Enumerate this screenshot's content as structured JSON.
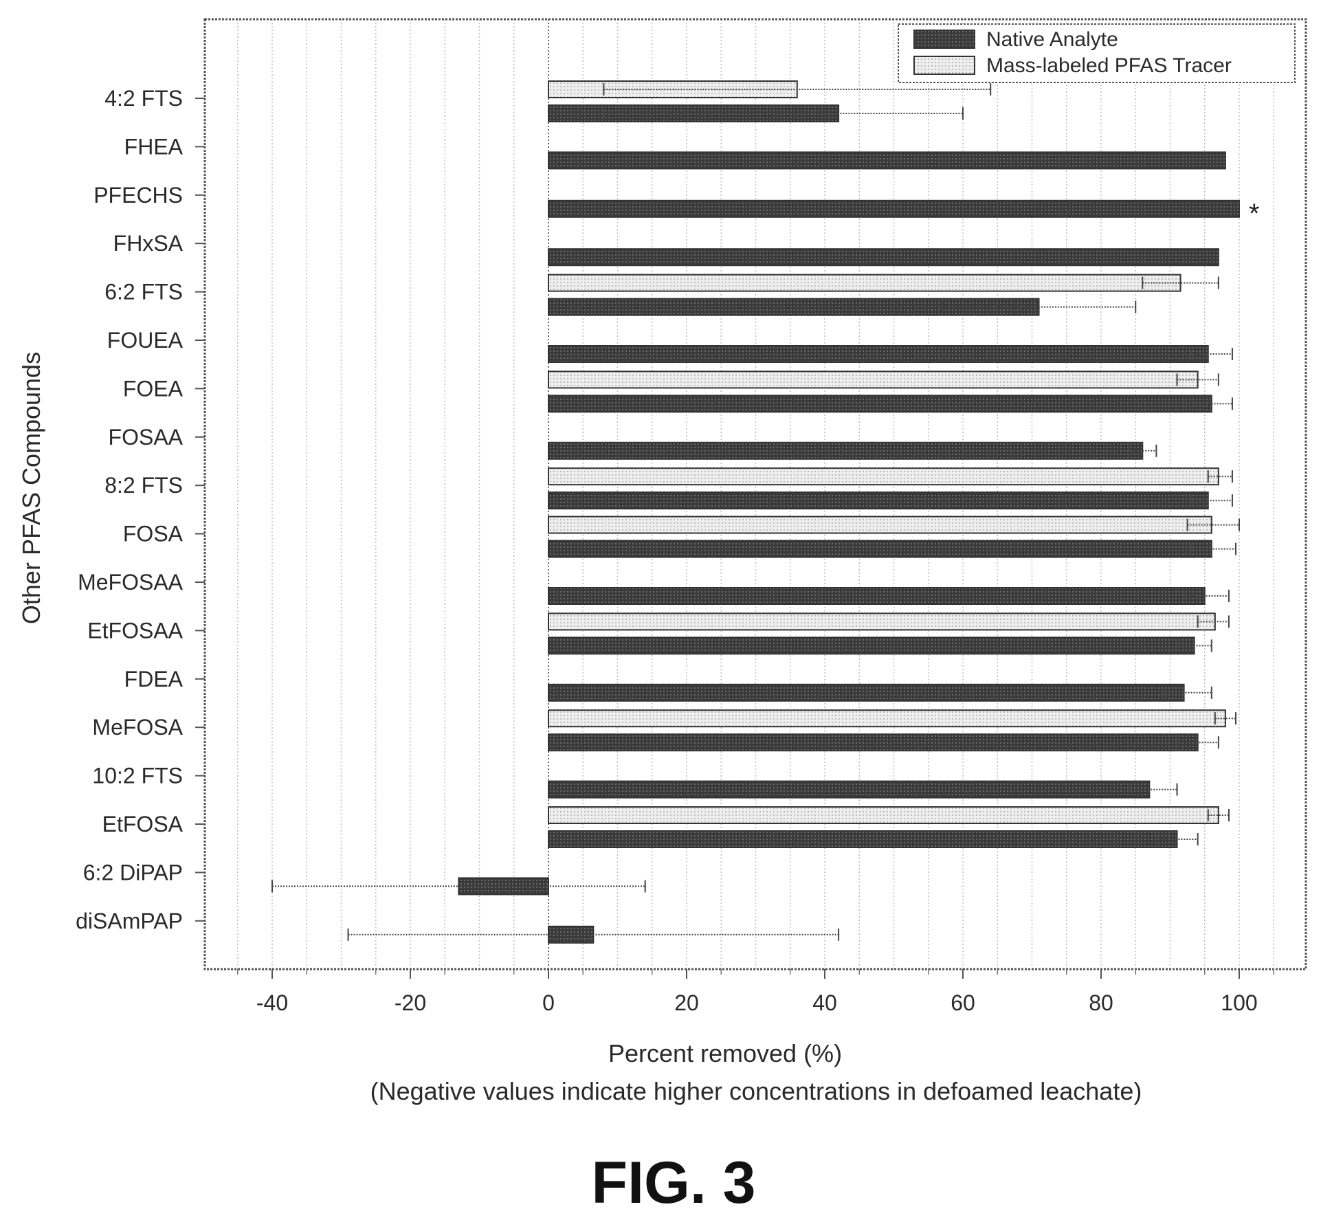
{
  "figure_caption": "FIG. 3",
  "chart_data": {
    "type": "bar",
    "orientation": "horizontal",
    "title": "",
    "xlabel": "Percent removed (%)",
    "xlabel_sub": "(Negative values indicate higher concentrations in defoamed leachate)",
    "ylabel": "Other PFAS Compounds",
    "xlim": [
      -50,
      108
    ],
    "xticks": [
      -40,
      -20,
      0,
      20,
      40,
      60,
      80,
      100
    ],
    "grid": "vertical dotted",
    "legend_position": "top-right",
    "categories": [
      "4:2 FTS",
      "FHEA",
      "PFECHS",
      "FHxSA",
      "6:2 FTS",
      "FOUEA",
      "FOEA",
      "FOSAA",
      "8:2 FTS",
      "FOSA",
      "MeFOSAA",
      "EtFOSAA",
      "FDEA",
      "MeFOSA",
      "10:2 FTS",
      "EtFOSA",
      "6:2 DiPAP",
      "diSAmPAP"
    ],
    "series": [
      {
        "name": "Native Analyte",
        "color": "#3a3a3a",
        "values": [
          42,
          98,
          100,
          97,
          71,
          95.5,
          96,
          86,
          95.5,
          96,
          95,
          93.5,
          92,
          94,
          87,
          91,
          -13,
          6.5
        ],
        "error_low": [
          8,
          null,
          null,
          null,
          57,
          93,
          92,
          84,
          93,
          93,
          92,
          91,
          89,
          91,
          84,
          88,
          -40,
          -29
        ],
        "error_high": [
          60,
          null,
          null,
          null,
          85,
          99,
          99,
          88,
          99,
          99.5,
          98.5,
          96,
          96,
          97,
          91,
          94,
          14,
          42
        ]
      },
      {
        "name": "Mass-labeled PFAS Tracer",
        "color": "#e4e4e4",
        "values": [
          36,
          null,
          null,
          null,
          91.5,
          null,
          94,
          null,
          97,
          96,
          null,
          96.5,
          null,
          98,
          null,
          97,
          null,
          null
        ],
        "error_low": [
          8,
          null,
          null,
          null,
          86,
          null,
          91,
          null,
          95.5,
          92.5,
          null,
          94,
          null,
          96.5,
          null,
          95.5,
          null,
          null
        ],
        "error_high": [
          64,
          null,
          null,
          null,
          97,
          null,
          97,
          null,
          99,
          100,
          null,
          98.5,
          null,
          99.5,
          null,
          98.5,
          null,
          null
        ]
      }
    ],
    "annotations": [
      {
        "category": "PFECHS",
        "text": "*"
      }
    ]
  }
}
